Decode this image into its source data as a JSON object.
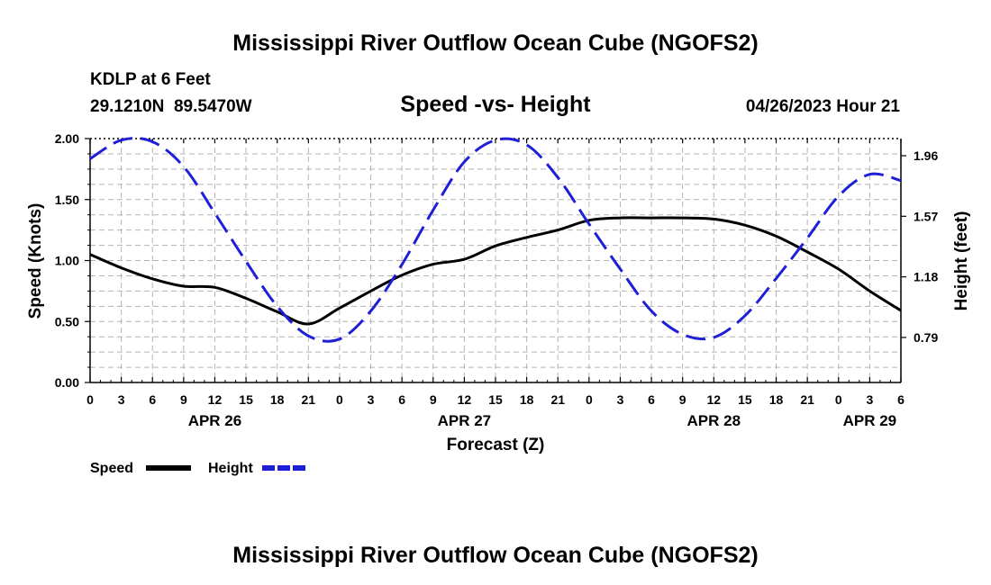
{
  "page_title": "Mississippi River Outflow Ocean Cube (NGOFS2)",
  "footer_title": "Mississippi River Outflow Ocean Cube (NGOFS2)",
  "station": {
    "name": "KDLP at 6 Feet",
    "coords": "29.1210N  89.5470W",
    "datetime": "04/26/2023 Hour 21"
  },
  "chart_data": {
    "type": "line",
    "title": "Speed -vs- Height",
    "xlabel": "Forecast (Z)",
    "ylabel": "Speed (Knots)",
    "y2label": "Height (feet)",
    "x_hours": [
      0,
      3,
      6,
      9,
      12,
      15,
      18,
      21,
      24,
      27,
      30,
      33,
      36,
      39,
      42,
      45,
      48,
      51,
      54,
      57,
      60,
      63,
      66,
      69,
      72,
      75,
      78
    ],
    "x_tick_labels": [
      "0",
      "3",
      "6",
      "9",
      "12",
      "15",
      "18",
      "21",
      "0",
      "3",
      "6",
      "9",
      "12",
      "15",
      "18",
      "21",
      "0",
      "3",
      "6",
      "9",
      "12",
      "15",
      "18",
      "21",
      "0",
      "3",
      "6"
    ],
    "day_labels": [
      {
        "label": "APR 26",
        "hour": 12
      },
      {
        "label": "APR 27",
        "hour": 36
      },
      {
        "label": "APR 28",
        "hour": 60
      },
      {
        "label": "APR 29",
        "hour": 75
      }
    ],
    "ylim": [
      0,
      2
    ],
    "y_ticks": [
      "0.00",
      "0.50",
      "1.00",
      "1.50",
      "2.00"
    ],
    "y2lim": [
      0.5,
      2.07
    ],
    "y2_ticks": [
      "0.79",
      "1.18",
      "1.57",
      "1.96"
    ],
    "series": [
      {
        "name": "Speed",
        "axis": "left",
        "color": "#000000",
        "dash": "solid",
        "x": [
          0,
          3,
          6,
          9,
          12,
          15,
          18,
          21,
          24,
          27,
          30,
          33,
          36,
          39,
          42,
          45,
          48,
          51,
          54,
          57,
          60,
          63,
          66,
          69,
          72,
          75,
          78
        ],
        "values": [
          1.05,
          0.94,
          0.85,
          0.79,
          0.78,
          0.69,
          0.58,
          0.48,
          0.61,
          0.75,
          0.88,
          0.97,
          1.01,
          1.12,
          1.19,
          1.25,
          1.33,
          1.35,
          1.35,
          1.35,
          1.34,
          1.29,
          1.2,
          1.07,
          0.93,
          0.75,
          0.59
        ]
      },
      {
        "name": "Height",
        "axis": "right",
        "color": "#1f1fd8",
        "dash": "dashed",
        "x": [
          0,
          3,
          6,
          9,
          12,
          15,
          18,
          21,
          24,
          27,
          30,
          33,
          36,
          39,
          42,
          45,
          48,
          51,
          54,
          57,
          60,
          63,
          66,
          69,
          72,
          75,
          78
        ],
        "values": [
          1.94,
          2.06,
          2.05,
          1.89,
          1.59,
          1.28,
          0.99,
          0.8,
          0.78,
          0.96,
          1.26,
          1.61,
          1.92,
          2.06,
          2.03,
          1.82,
          1.52,
          1.23,
          0.96,
          0.81,
          0.79,
          0.93,
          1.17,
          1.43,
          1.7,
          1.84,
          1.8
        ]
      }
    ],
    "legend": [
      {
        "label": "Speed",
        "color": "#000000"
      },
      {
        "label": "Height",
        "color": "#1f1fd8"
      }
    ]
  }
}
